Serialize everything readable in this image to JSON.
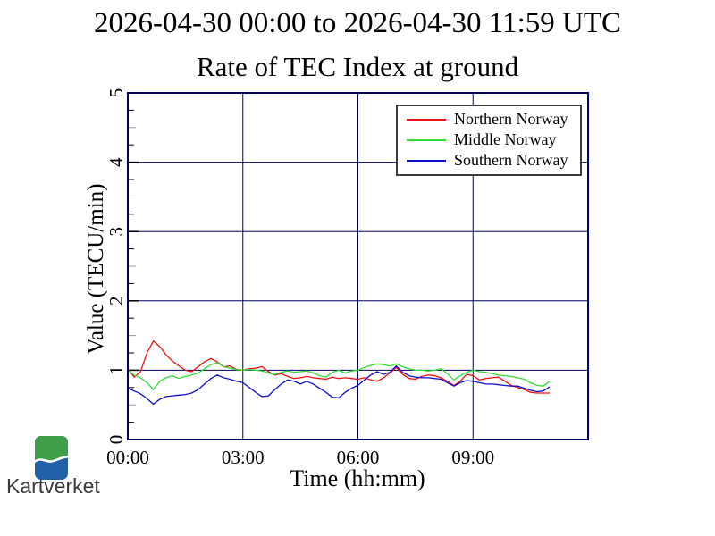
{
  "page": {
    "background": "#ffffff"
  },
  "chart_data": {
    "type": "line",
    "title": "2026-04-30 00:00 to 2026-04-30 11:59 UTC",
    "subtitle": "Rate of TEC Index at ground",
    "xlabel": "Time (hh:mm)",
    "ylabel": "Value (TECU/min)",
    "xlim_minutes": [
      0,
      720
    ],
    "ylim": [
      0,
      5
    ],
    "x_ticks": [
      {
        "t": 0,
        "label": "00:00"
      },
      {
        "t": 180,
        "label": "03:00"
      },
      {
        "t": 360,
        "label": "06:00"
      },
      {
        "t": 540,
        "label": "09:00"
      }
    ],
    "y_ticks": [
      {
        "v": 0,
        "label": "0"
      },
      {
        "v": 1,
        "label": "1"
      },
      {
        "v": 2,
        "label": "2"
      },
      {
        "v": 3,
        "label": "3"
      },
      {
        "v": 4,
        "label": "4"
      },
      {
        "v": 5,
        "label": "5"
      }
    ],
    "y_minor_step": 0.25,
    "grid": true,
    "legend_position": "top-right",
    "axis_color": "#000066",
    "grid_color": "#000066",
    "tick_color": "#000000",
    "half_tick_color": "#999999",
    "sample_interval_minutes": 10,
    "series": [
      {
        "name": "Northern Norway",
        "color": "#ee1111",
        "values": [
          1.02,
          0.9,
          0.98,
          1.25,
          1.42,
          1.34,
          1.22,
          1.13,
          1.06,
          1.0,
          0.98,
          1.05,
          1.12,
          1.17,
          1.12,
          1.05,
          1.06,
          1.01,
          1.0,
          1.02,
          1.03,
          1.05,
          0.98,
          0.93,
          0.95,
          0.91,
          0.88,
          0.89,
          0.91,
          0.89,
          0.88,
          0.87,
          0.9,
          0.88,
          0.89,
          0.88,
          0.87,
          0.89,
          0.86,
          0.84,
          0.89,
          0.96,
          1.04,
          0.94,
          0.88,
          0.87,
          0.91,
          0.93,
          0.92,
          0.89,
          0.84,
          0.78,
          0.84,
          0.94,
          0.92,
          0.86,
          0.88,
          0.89,
          0.9,
          0.84,
          0.78,
          0.75,
          0.72,
          0.68,
          0.67,
          0.67,
          0.67
        ]
      },
      {
        "name": "Middle Norway",
        "color": "#33dd33",
        "values": [
          1.0,
          0.93,
          0.89,
          0.82,
          0.72,
          0.84,
          0.89,
          0.92,
          0.88,
          0.91,
          0.93,
          0.96,
          1.02,
          1.08,
          1.11,
          1.05,
          1.03,
          1.01,
          1.0,
          1.01,
          1.0,
          0.99,
          0.96,
          0.94,
          0.97,
          0.99,
          0.97,
          0.98,
          0.99,
          0.96,
          0.92,
          0.9,
          0.97,
          1.0,
          0.96,
          0.99,
          1.0,
          1.04,
          1.07,
          1.09,
          1.08,
          1.06,
          1.09,
          1.05,
          1.02,
          1.0,
          1.0,
          0.99,
          1.0,
          1.02,
          0.95,
          0.86,
          0.92,
          0.97,
          1.0,
          0.98,
          0.97,
          0.95,
          0.93,
          0.92,
          0.91,
          0.89,
          0.87,
          0.82,
          0.78,
          0.77,
          0.84
        ]
      },
      {
        "name": "Southern Norway",
        "color": "#1111cc",
        "values": [
          0.74,
          0.7,
          0.66,
          0.59,
          0.51,
          0.58,
          0.62,
          0.63,
          0.64,
          0.65,
          0.67,
          0.72,
          0.8,
          0.88,
          0.93,
          0.89,
          0.87,
          0.84,
          0.82,
          0.75,
          0.68,
          0.62,
          0.63,
          0.72,
          0.8,
          0.86,
          0.84,
          0.8,
          0.84,
          0.8,
          0.74,
          0.68,
          0.61,
          0.6,
          0.68,
          0.74,
          0.78,
          0.86,
          0.93,
          0.98,
          0.94,
          0.97,
          1.06,
          0.97,
          0.92,
          0.9,
          0.89,
          0.89,
          0.88,
          0.87,
          0.82,
          0.77,
          0.82,
          0.85,
          0.84,
          0.82,
          0.8,
          0.8,
          0.79,
          0.78,
          0.77,
          0.77,
          0.74,
          0.71,
          0.69,
          0.7,
          0.76
        ]
      }
    ]
  },
  "branding": {
    "wordmark": "Kartverket",
    "logo_green": "#3f9e49",
    "logo_blue": "#2060a8",
    "wordmark_color": "#3a3a3a"
  }
}
